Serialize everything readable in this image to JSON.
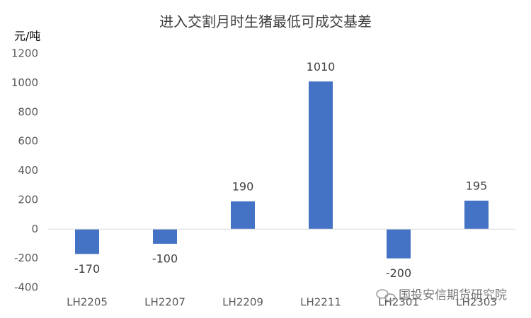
{
  "chart_data": {
    "type": "bar",
    "title": "进入交割月时生猪最低可成交基差",
    "y_label": "元/吨",
    "categories": [
      "LH2205",
      "LH2207",
      "LH2209",
      "LH2211",
      "LH2301",
      "LH2303"
    ],
    "values": [
      -170,
      -100,
      190,
      1010,
      -200,
      195
    ],
    "color": "#4472c4",
    "ylim": [
      -400,
      1200
    ],
    "yticks": [
      -400,
      -200,
      0,
      200,
      400,
      600,
      800,
      1000,
      1200
    ],
    "grid": false,
    "watermark": "国投安信期货研究院"
  }
}
